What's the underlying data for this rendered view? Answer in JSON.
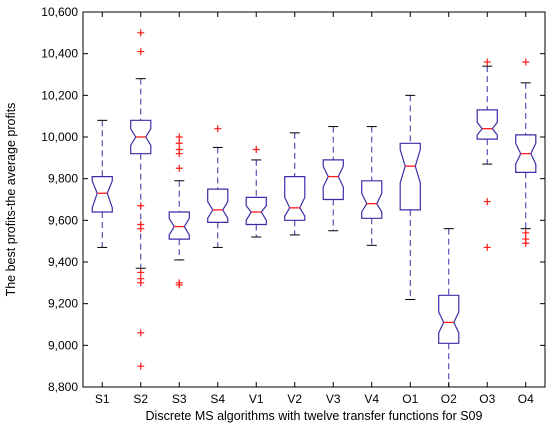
{
  "chart_data": {
    "type": "boxplot",
    "title": "",
    "xlabel": "Discrete MS algorithms with twelve transfer functions for S09",
    "ylabel": "The best profits-the average profits",
    "ylim": [
      8800,
      10600
    ],
    "yticks": [
      8800,
      9000,
      9200,
      9400,
      9600,
      9800,
      10000,
      10200,
      10400,
      10600
    ],
    "ytick_labels": [
      "8,800",
      "9,000",
      "9,200",
      "9,400",
      "9,600",
      "9,800",
      "10,000",
      "10,200",
      "10,400",
      "10,600"
    ],
    "notched": true,
    "grid": false,
    "colors": {
      "box": "#3a2ea8",
      "median": "#ff1a1a",
      "outlier": "#ff1a1a",
      "whisker": "#3a2ea8",
      "axis": "#000000"
    },
    "categories": [
      "S1",
      "S2",
      "S3",
      "S4",
      "V1",
      "V2",
      "V3",
      "V4",
      "O1",
      "O2",
      "O3",
      "O4"
    ],
    "boxes": [
      {
        "label": "S1",
        "whisker_low": 9470,
        "q1": 9640,
        "notch_low": 9660,
        "median": 9730,
        "notch_high": 9790,
        "q3": 9810,
        "whisker_high": 10080,
        "outliers": []
      },
      {
        "label": "S2",
        "whisker_low": 9370,
        "q1": 9920,
        "notch_low": 9960,
        "median": 10000,
        "notch_high": 10040,
        "q3": 10080,
        "whisker_high": 10280,
        "outliers": [
          10500,
          10410,
          9670,
          9580,
          9560,
          9350,
          9320,
          9300,
          9060,
          8900
        ]
      },
      {
        "label": "S3",
        "whisker_low": 9410,
        "q1": 9510,
        "notch_low": 9530,
        "median": 9570,
        "notch_high": 9610,
        "q3": 9640,
        "whisker_high": 9790,
        "outliers": [
          10000,
          9970,
          9940,
          9920,
          9850,
          9300,
          9290
        ]
      },
      {
        "label": "S4",
        "whisker_low": 9470,
        "q1": 9590,
        "notch_low": 9610,
        "median": 9650,
        "notch_high": 9690,
        "q3": 9750,
        "whisker_high": 9950,
        "outliers": [
          10040
        ]
      },
      {
        "label": "V1",
        "whisker_low": 9520,
        "q1": 9580,
        "notch_low": 9600,
        "median": 9640,
        "notch_high": 9670,
        "q3": 9710,
        "whisker_high": 9890,
        "outliers": [
          9940
        ]
      },
      {
        "label": "V2",
        "whisker_low": 9530,
        "q1": 9600,
        "notch_low": 9620,
        "median": 9660,
        "notch_high": 9710,
        "q3": 9810,
        "whisker_high": 10020,
        "outliers": []
      },
      {
        "label": "V3",
        "whisker_low": 9550,
        "q1": 9700,
        "notch_low": 9760,
        "median": 9810,
        "notch_high": 9860,
        "q3": 9890,
        "whisker_high": 10050,
        "outliers": []
      },
      {
        "label": "V4",
        "whisker_low": 9480,
        "q1": 9610,
        "notch_low": 9640,
        "median": 9680,
        "notch_high": 9730,
        "q3": 9790,
        "whisker_high": 10050,
        "outliers": []
      },
      {
        "label": "O1",
        "whisker_low": 9220,
        "q1": 9650,
        "notch_low": 9780,
        "median": 9860,
        "notch_high": 9940,
        "q3": 9970,
        "whisker_high": 10200,
        "outliers": []
      },
      {
        "label": "O2",
        "whisker_low": 8800,
        "q1": 9010,
        "notch_low": 9060,
        "median": 9110,
        "notch_high": 9160,
        "q3": 9240,
        "whisker_high": 9560,
        "outliers": []
      },
      {
        "label": "O3",
        "whisker_low": 9870,
        "q1": 9990,
        "notch_low": 10010,
        "median": 10040,
        "notch_high": 10070,
        "q3": 10130,
        "whisker_high": 10340,
        "outliers": [
          10360,
          9690,
          9470
        ]
      },
      {
        "label": "O4",
        "whisker_low": 9560,
        "q1": 9830,
        "notch_low": 9870,
        "median": 9920,
        "notch_high": 9970,
        "q3": 10010,
        "whisker_high": 10260,
        "outliers": [
          10360,
          9540,
          9510,
          9490
        ]
      }
    ]
  }
}
